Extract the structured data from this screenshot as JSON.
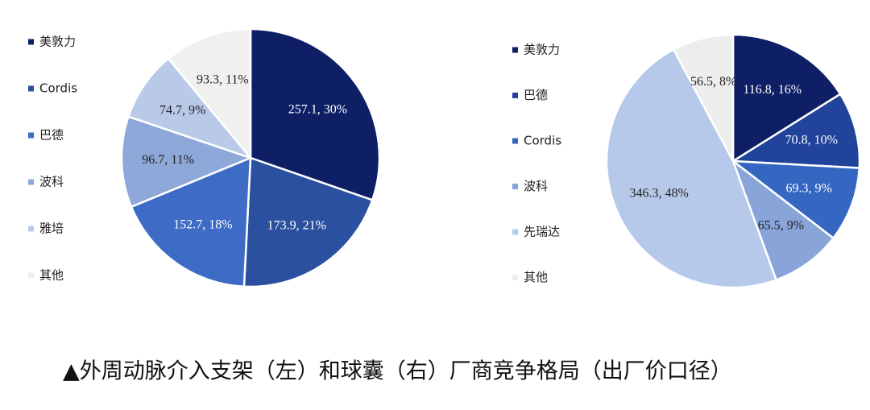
{
  "chart_data": [
    {
      "type": "pie",
      "categories": [
        "美敦力",
        "Cordis",
        "巴德",
        "波科",
        "雅培",
        "其他"
      ],
      "values": [
        257.1,
        173.9,
        152.7,
        96.7,
        74.7,
        93.3
      ],
      "value_labels": [
        "257.1, 30%",
        "173.9, 21%",
        "152.7, 18%",
        "96.7, 11%",
        "74.7, 9%",
        "93.3, 11%"
      ],
      "colors": [
        "#0e1f66",
        "#2c50a0",
        "#3d6bc5",
        "#8ea8da",
        "#b9cae9",
        "#f0f0f0"
      ]
    },
    {
      "type": "pie",
      "categories": [
        "美敦力",
        "巴德",
        "Cordis",
        "波科",
        "先瑞达",
        "其他"
      ],
      "values": [
        116.8,
        70.8,
        69.3,
        65.5,
        346.3,
        56.5
      ],
      "value_labels": [
        "116.8, 16%",
        "70.8, 10%",
        "69.3, 9%",
        "65.5, 9%",
        "346.3, 48%",
        "56.5, 8%"
      ],
      "colors": [
        "#0e1f66",
        "#22439b",
        "#3566c2",
        "#88a4d9",
        "#b7c9ea",
        "#ededed"
      ]
    }
  ],
  "caption": "▲外周动脉介入支架（左）和球囊（右）厂商竞争格局（出厂价口径）"
}
